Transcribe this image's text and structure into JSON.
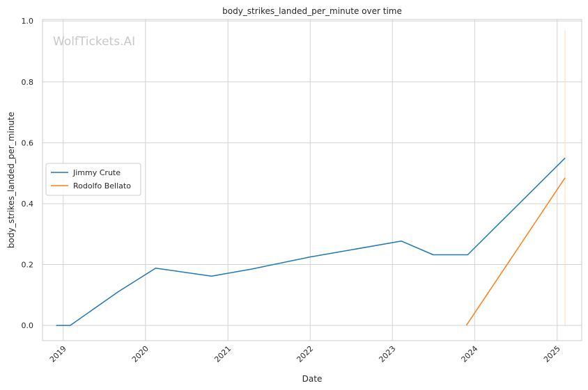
{
  "watermark": "WolfTickets.AI",
  "chart_data": {
    "type": "line",
    "title": "body_strikes_landed_per_minute over time",
    "xlabel": "Date",
    "ylabel": "body_strikes_landed_per_minute",
    "x_axis": "date",
    "xlim": [
      "2018-10-01",
      "2025-04-20"
    ],
    "ylim": [
      -0.05,
      1.005
    ],
    "x_ticks": [
      "2019-01-01",
      "2020-01-01",
      "2021-01-01",
      "2022-01-01",
      "2023-01-01",
      "2024-01-01",
      "2025-01-01"
    ],
    "x_tick_labels": [
      "2019",
      "2020",
      "2021",
      "2022",
      "2023",
      "2024",
      "2025"
    ],
    "y_ticks": [
      0.0,
      0.2,
      0.4,
      0.6,
      0.8,
      1.0
    ],
    "y_tick_labels": [
      "0.0",
      "0.2",
      "0.4",
      "0.6",
      "0.8",
      "1.0"
    ],
    "grid": true,
    "legend": "center-left",
    "series": [
      {
        "name": "Jimmy Crute",
        "color": "#1f77b4",
        "points": [
          {
            "x": "2018-12-01",
            "y": 0.0
          },
          {
            "x": "2019-02-01",
            "y": 0.0
          },
          {
            "x": "2019-09-01",
            "y": 0.11
          },
          {
            "x": "2020-02-15",
            "y": 0.188
          },
          {
            "x": "2020-10-20",
            "y": 0.162
          },
          {
            "x": "2021-04-15",
            "y": 0.185
          },
          {
            "x": "2022-01-01",
            "y": 0.225
          },
          {
            "x": "2023-02-10",
            "y": 0.277
          },
          {
            "x": "2023-07-01",
            "y": 0.232
          },
          {
            "x": "2023-12-01",
            "y": 0.232
          },
          {
            "x": "2025-02-05",
            "y": 0.55
          }
        ]
      },
      {
        "name": "Rodolfo Bellato",
        "color": "#ff7f0e",
        "points": [
          {
            "x": "2023-11-25",
            "y": 0.0
          },
          {
            "x": "2025-02-05",
            "y": 0.485
          }
        ]
      }
    ],
    "reference_line": {
      "x": "2025-02-05",
      "y_from": 0.0,
      "y_to": 0.97,
      "color": "#f5deb3"
    }
  }
}
